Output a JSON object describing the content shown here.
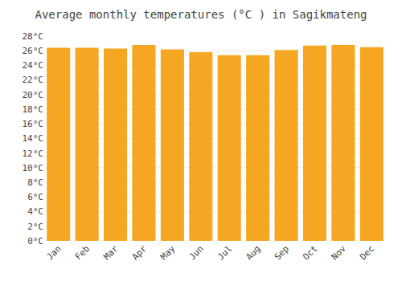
{
  "chart_data": {
    "type": "bar",
    "title": "Average monthly temperatures (°C ) in Sagikmateng",
    "categories": [
      "Jan",
      "Feb",
      "Mar",
      "Apr",
      "May",
      "Jun",
      "Jul",
      "Aug",
      "Sep",
      "Oct",
      "Nov",
      "Dec"
    ],
    "values": [
      26.4,
      26.4,
      26.3,
      26.8,
      26.2,
      25.8,
      25.4,
      25.4,
      26.1,
      26.7,
      26.8,
      26.5
    ],
    "color": "#F5A623",
    "ylim": [
      0,
      28
    ],
    "yticks": [
      {
        "value": 0,
        "label": "0°C"
      },
      {
        "value": 2,
        "label": "2°C"
      },
      {
        "value": 4,
        "label": "4°C"
      },
      {
        "value": 6,
        "label": "6°C"
      },
      {
        "value": 8,
        "label": "8°C"
      },
      {
        "value": 10,
        "label": "10°C"
      },
      {
        "value": 12,
        "label": "12°C"
      },
      {
        "value": 14,
        "label": "14°C"
      },
      {
        "value": 16,
        "label": "16°C"
      },
      {
        "value": 18,
        "label": "18°C"
      },
      {
        "value": 20,
        "label": "20°C"
      },
      {
        "value": 22,
        "label": "22°C"
      },
      {
        "value": 24,
        "label": "24°C"
      },
      {
        "value": 26,
        "label": "26°C"
      },
      {
        "value": 28,
        "label": "28°C"
      }
    ],
    "grid": true
  }
}
